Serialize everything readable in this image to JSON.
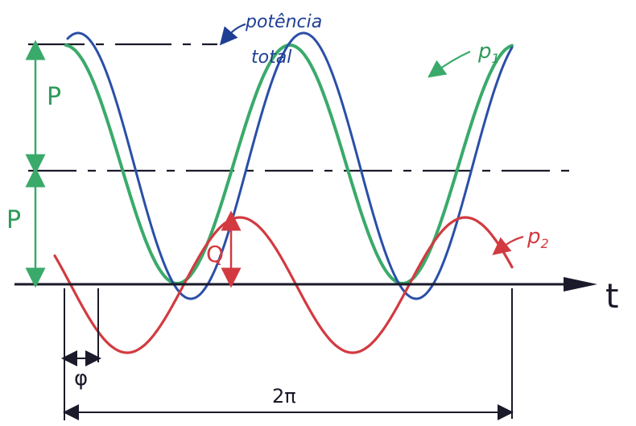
{
  "labels": {
    "total_power": "potência",
    "total_power_2": "total",
    "p1": "p",
    "p1_sub": "1",
    "p2": "p",
    "p2_sub": "2",
    "upper_p": "P",
    "lower_p": "P",
    "q": "Q",
    "phi": "φ",
    "period": "2π",
    "time_axis": "t"
  },
  "colors": {
    "axis": "#1a1a2a",
    "blue": "#2a4fa8",
    "green": "#3aaa6a",
    "red": "#d23a40",
    "green_label": "#2e9a5a",
    "blue_label": "#1f3f95"
  },
  "icons": {
    "axis_arrow": "arrow-right-icon",
    "dim_arrows": "double-arrow-icon"
  }
}
